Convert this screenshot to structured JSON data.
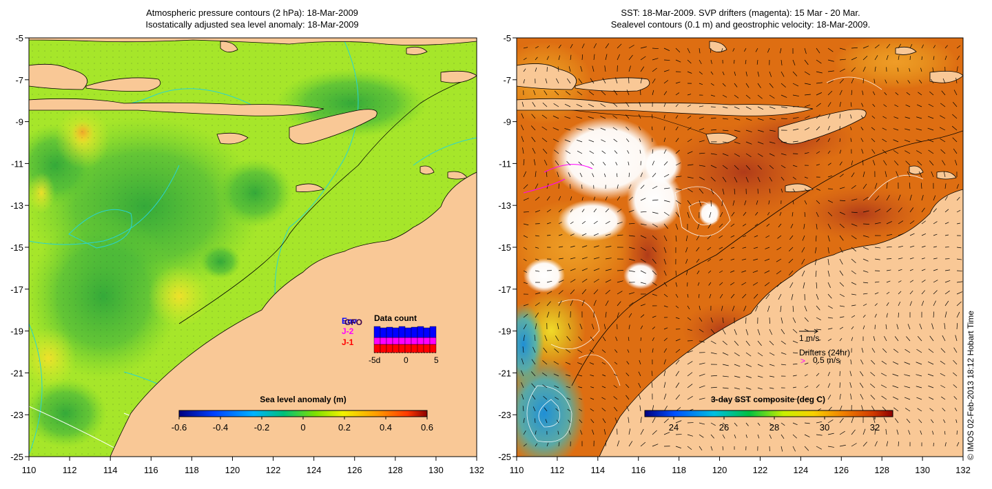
{
  "left_panel": {
    "title_line1": "Atmospheric pressure contours (2 hPa): 18-Mar-2009",
    "title_line2": "Isostatically adjusted sea level anomaly: 18-Mar-2009",
    "colorbar_label": "Sea level anomaly (m)",
    "colorbar_ticks": [
      "-0.6",
      "-0.4",
      "-0.2",
      "0",
      "0.2",
      "0.4",
      "0.6"
    ],
    "data_count": {
      "title": "Data count",
      "legend": [
        "Env",
        "J-2",
        "J-1"
      ],
      "overlay_label": "GFO",
      "axis_ticks": [
        "-5d",
        "0",
        "5"
      ],
      "series_colors": {
        "Env": "#0000ff",
        "J-2": "#ff00ff",
        "J-1": "#ff0000"
      }
    }
  },
  "right_panel": {
    "title_line1": "SST: 18-Mar-2009. SVP drifters (magenta): 15 Mar - 20 Mar.",
    "title_line2": "Sealevel contours (0.1 m) and geostrophic velocity: 18-Mar-2009.",
    "colorbar_label": "3-day SST composite (deg C)",
    "colorbar_ticks": [
      "24",
      "26",
      "28",
      "30",
      "32"
    ],
    "velocity_scale_label": "1 m/s",
    "drifters_label": "Drifters (24hr)",
    "drifter_scale_label": "0.5 m/s",
    "drifter_marker": ">"
  },
  "axes": {
    "x_ticks": [
      "110",
      "112",
      "114",
      "116",
      "118",
      "120",
      "122",
      "124",
      "126",
      "128",
      "130",
      "132"
    ],
    "y_ticks": [
      "-5",
      "-7",
      "-9",
      "-11",
      "-13",
      "-15",
      "-17",
      "-19",
      "-21",
      "-23",
      "-25"
    ]
  },
  "copyright": "© IMOS 02-Feb-2013 18:12 Hobart Time",
  "colors": {
    "land": "#f9c896",
    "sla_bg": "#a8e81e",
    "sst_bg": "#dd6a0f",
    "drifter": "#ff00ff"
  }
}
